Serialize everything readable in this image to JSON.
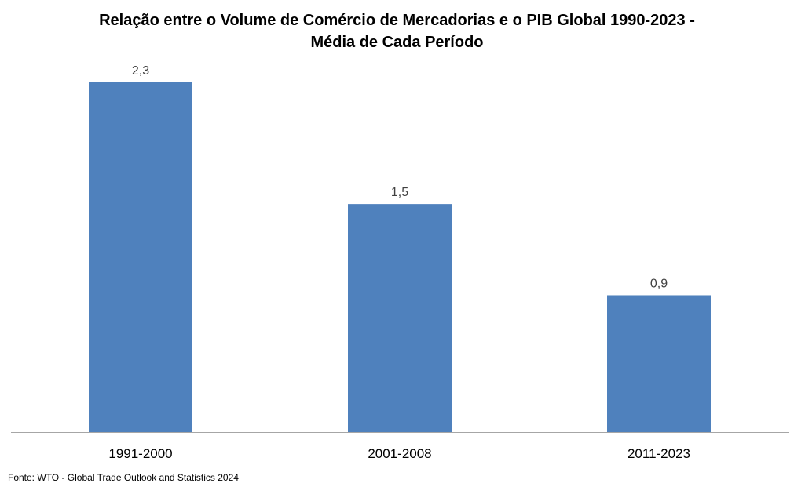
{
  "chart_data": {
    "type": "bar",
    "title_line1": "Relação entre o Volume de Comércio de Mercadorias e o PIB Global 1990-2023 -",
    "title_line2": "Média de Cada Período",
    "categories": [
      "1991-2000",
      "2001-2008",
      "2011-2023"
    ],
    "values": [
      2.3,
      1.5,
      0.9
    ],
    "value_labels": [
      "2,3",
      "1,5",
      "0,9"
    ],
    "xlabel": "",
    "ylabel": "",
    "ylim": [
      0,
      2.3
    ],
    "grid": false,
    "legend": "none",
    "bar_color": "#4F81BD",
    "axis_color": "#A6A6A6"
  },
  "source": "Fonte: WTO - Global Trade Outlook and Statistics 2024"
}
